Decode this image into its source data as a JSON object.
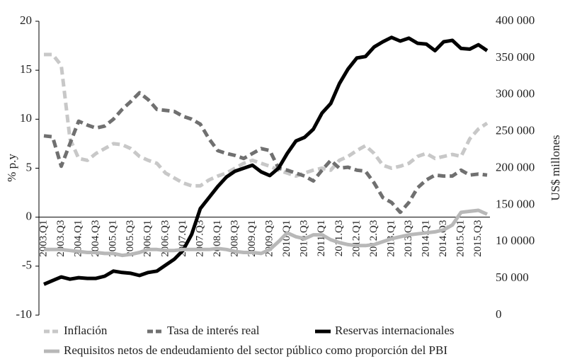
{
  "chart_data": {
    "type": "line",
    "y_label": "% p.y",
    "y2_label": "US$ millones",
    "categories": [
      "2003.Q1",
      null,
      "2003.Q3",
      null,
      "2004.Q1",
      null,
      "2004.Q3",
      null,
      "2005.Q1",
      null,
      "2005.Q3",
      null,
      "2006.Q1",
      null,
      "2006.Q3",
      null,
      "2007.Q1",
      null,
      "2007.Q3",
      null,
      "2008.Q1",
      null,
      "2008.Q3",
      null,
      "2009.Q1",
      null,
      "2009.Q3",
      null,
      "2010.Q1",
      null,
      "2010.Q3",
      null,
      "2011.Q1",
      null,
      "2011.Q3",
      null,
      "2012.Q1",
      null,
      "2012.Q3",
      null,
      "2013.Q1",
      null,
      "2013.Q3",
      null,
      "2014.Q1",
      null,
      "2014.Q3",
      null,
      "2015.Q1",
      null,
      "2015.Q3",
      null
    ],
    "series": [
      {
        "name": "Inflación",
        "color": "#c8c8c8",
        "dashed": true,
        "values": [
          16.6,
          16.6,
          15.5,
          8,
          6,
          5.8,
          6.5,
          7,
          7.5,
          7.4,
          7.0,
          6.2,
          5.8,
          5.5,
          4.5,
          4,
          3.5,
          3.2,
          3.2,
          3.8,
          4.2,
          4.5,
          5,
          5.5,
          5.8,
          5.5,
          5.2,
          4.8,
          4.5,
          4.2,
          4.5,
          4.8,
          5,
          4.8,
          5.8,
          6.2,
          6.8,
          7.3,
          6.5,
          5.3,
          5,
          5.2,
          5.5,
          6.2,
          6.5,
          6,
          6.2,
          6.4,
          6.2,
          8,
          9,
          9.6
        ]
      },
      {
        "name": "Tasa de interés real",
        "color": "#707070",
        "dashed": true,
        "values": [
          8.3,
          8.2,
          5.2,
          7.5,
          9.8,
          9.4,
          9.1,
          9.3,
          10,
          11,
          11.8,
          12.7,
          12,
          11,
          10.9,
          10.8,
          10.3,
          10,
          9.5,
          8,
          6.8,
          6.5,
          6.3,
          6,
          6.5,
          7,
          6.8,
          5,
          4.8,
          4.5,
          4.2,
          3.7,
          4.8,
          5.8,
          5,
          5.1,
          4.8,
          4.7,
          3.5,
          2,
          1.5,
          0.5,
          1.5,
          3,
          3.8,
          4.3,
          4.2,
          4.2,
          4.8,
          4.3,
          4.4,
          4.3
        ]
      },
      {
        "name": "Reservas internacionales",
        "color": "#000000",
        "axis": "y2",
        "values": [
          42000,
          47000,
          52000,
          49000,
          51000,
          50000,
          50000,
          53000,
          60000,
          58000,
          57000,
          54000,
          58000,
          60000,
          68000,
          76000,
          88000,
          110000,
          145000,
          160000,
          175000,
          188000,
          196000,
          200000,
          204000,
          195000,
          190000,
          200000,
          220000,
          237000,
          242000,
          253000,
          275000,
          288000,
          315000,
          335000,
          350000,
          352000,
          365000,
          372000,
          378000,
          373000,
          377000,
          370000,
          369000,
          360000,
          372000,
          374000,
          363000,
          362000,
          368000,
          360000
        ]
      },
      {
        "name": "Requisitos netos de endeudamiento del sector público como proporción del PBI",
        "color": "#b8b8b8",
        "values": [
          -3.3,
          -3.3,
          -3.3,
          -3.4,
          -3.5,
          -3.6,
          -3.6,
          -3.7,
          -3.7,
          -3.9,
          -3.8,
          -3.6,
          -3.3,
          -3.3,
          -3.4,
          -3.4,
          -3.3,
          -3.3,
          -3.3,
          -3.3,
          -3.2,
          -3.3,
          -3.5,
          -3.6,
          -3.6,
          -3.7,
          -3.3,
          -2.5,
          -1.6,
          -2,
          -2.2,
          -1.8,
          -1.8,
          -2.3,
          -2.6,
          -2.8,
          -2.9,
          -2.9,
          -2.8,
          -2.5,
          -2.2,
          -2,
          -1.8,
          -1.7,
          -1.6,
          -1.5,
          -1.3,
          -0.8,
          0.5,
          0.6,
          0.7,
          0.3
        ]
      }
    ],
    "ylim": [
      -10,
      20
    ],
    "yticks": [
      20,
      15,
      10,
      5,
      0,
      -5,
      -10
    ],
    "y2lim": [
      0,
      400000
    ],
    "y2ticks": [
      {
        "value": 400000,
        "label": "400 000"
      },
      {
        "value": 350000,
        "label": "350 000"
      },
      {
        "value": 300000,
        "label": "300 000"
      },
      {
        "value": 250000,
        "label": "250 000"
      },
      {
        "value": 200000,
        "label": "200 000"
      },
      {
        "value": 150000,
        "label": "150 000"
      },
      {
        "value": 100000,
        "label": "10 0000"
      },
      {
        "value": 50000,
        "label": "50 000"
      },
      0
    ]
  }
}
